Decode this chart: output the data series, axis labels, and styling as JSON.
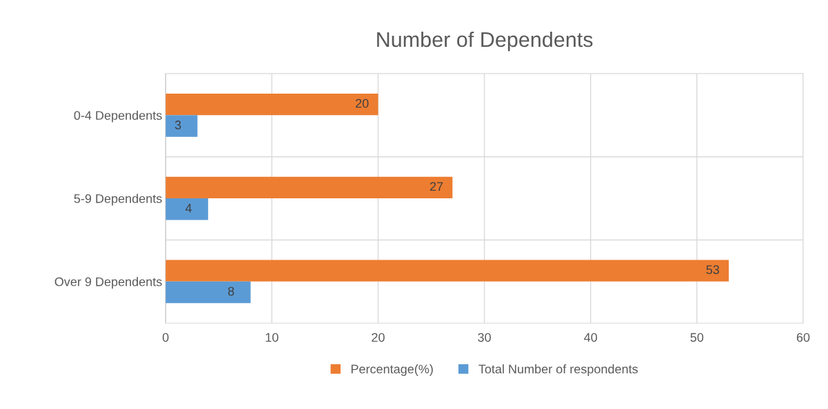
{
  "chart_data": {
    "type": "bar",
    "orientation": "horizontal",
    "title": "Number of Dependents",
    "categories": [
      "0-4 Dependents",
      "5-9 Dependents",
      "Over 9 Dependents"
    ],
    "series": [
      {
        "name": "Percentage(%)",
        "color": "#ed7d31",
        "values": [
          20,
          27,
          53
        ]
      },
      {
        "name": "Total Number of respondents",
        "color": "#5b9bd5",
        "values": [
          3,
          4,
          8
        ]
      }
    ],
    "xlim": [
      0,
      60
    ],
    "xticks": [
      0,
      10,
      20,
      30,
      40,
      50,
      60
    ],
    "grid": true,
    "legend": "bottom",
    "data_labels": true
  }
}
